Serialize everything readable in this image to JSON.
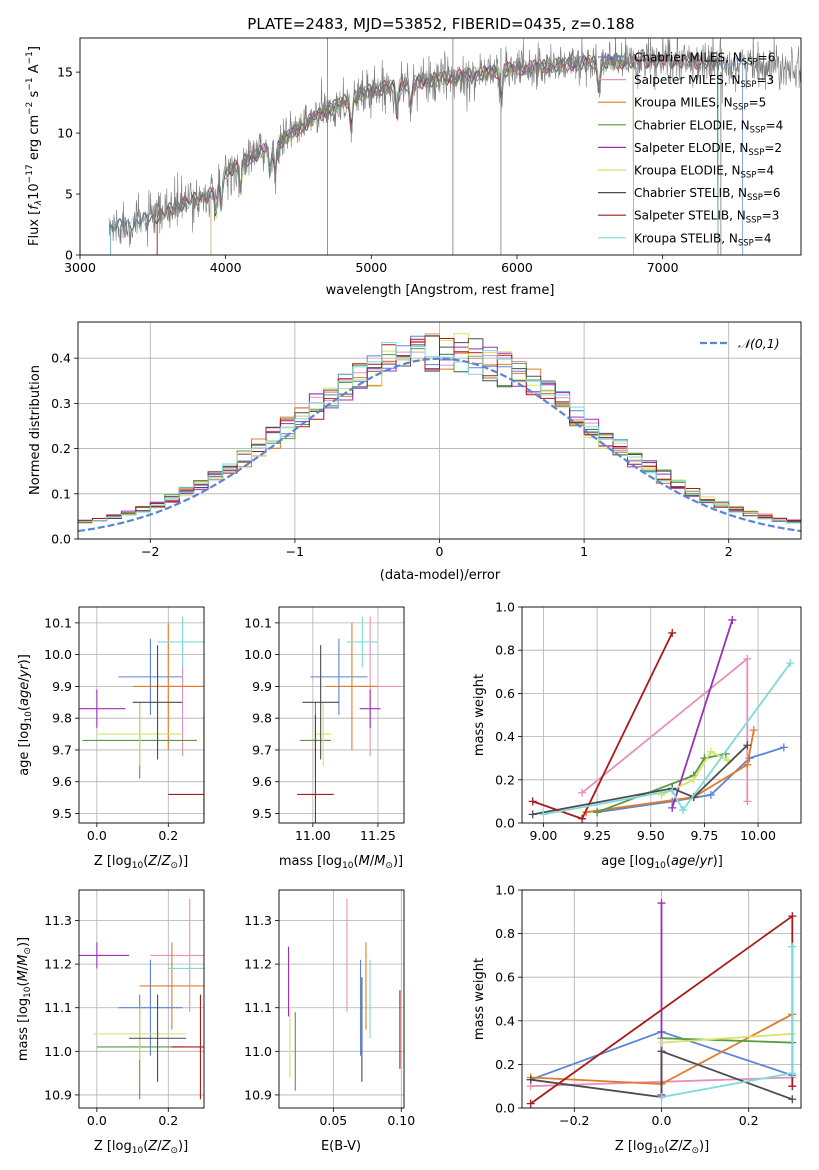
{
  "title": "PLATE=2483, MJD=53852, FIBERID=0435, z=0.188",
  "colors": {
    "Chabrier MILES": "#5b84d6",
    "Salpeter MILES": "#e88fbd",
    "Kroupa MILES": "#e07b2a",
    "Chabrier ELODIE": "#5a9a3e",
    "Salpeter ELODIE": "#9b30b8",
    "Kroupa ELODIE": "#d4e36a",
    "Chabrier STELIB": "#4d4d4d",
    "Salpeter STELIB": "#aa1a1a",
    "Kroupa STELIB": "#7fdada"
  },
  "chart_data": [
    {
      "type": "line",
      "xlabel": "wavelength [Angstrom, rest frame]",
      "ylabel": "Flux [f_λ 10^-17 erg cm^-2 s^-1 A^-1]",
      "xlim": [
        3000,
        7950
      ],
      "ylim": [
        0,
        17.8
      ],
      "xticks": [
        3000,
        4000,
        5000,
        6000,
        7000
      ],
      "yticks": [
        0,
        5,
        10,
        15
      ],
      "legend_position": "right",
      "series": [
        {
          "name": "Chabrier MILES",
          "nssp": "6",
          "xrange": [
            3210,
            7550
          ]
        },
        {
          "name": "Salpeter MILES",
          "nssp": "3",
          "xrange": [
            3530,
            7380
          ]
        },
        {
          "name": "Kroupa MILES",
          "nssp": "5",
          "xrange": [
            3530,
            7380
          ]
        },
        {
          "name": "Chabrier ELODIE",
          "nssp": "4",
          "xrange": [
            3900,
            6800
          ]
        },
        {
          "name": "Salpeter ELODIE",
          "nssp": "2",
          "xrange": [
            3900,
            6800
          ]
        },
        {
          "name": "Kroupa ELODIE",
          "nssp": "4",
          "xrange": [
            3900,
            6800
          ]
        },
        {
          "name": "Chabrier STELIB",
          "nssp": "6",
          "xrange": [
            3210,
            7380
          ]
        },
        {
          "name": "Salpeter STELIB",
          "nssp": "3",
          "xrange": [
            3530,
            7380
          ]
        },
        {
          "name": "Kroupa STELIB",
          "nssp": "4",
          "xrange": [
            3210,
            7380
          ]
        }
      ],
      "continuum": [
        [
          3200,
          2.2
        ],
        [
          3500,
          3.0
        ],
        [
          3700,
          4.2
        ],
        [
          3900,
          5.0
        ],
        [
          4000,
          6.8
        ],
        [
          4200,
          8.2
        ],
        [
          4400,
          9.5
        ],
        [
          4600,
          11.2
        ],
        [
          4800,
          12.5
        ],
        [
          5000,
          13.5
        ],
        [
          5200,
          14.0
        ],
        [
          5500,
          14.5
        ],
        [
          6000,
          15.3
        ],
        [
          6500,
          15.8
        ],
        [
          7000,
          15.9
        ],
        [
          7500,
          15.7
        ],
        [
          7950,
          15.6
        ]
      ],
      "absorption_lines": [
        3933,
        3968,
        4101,
        4304,
        4340,
        4861,
        5175,
        5270,
        5892,
        6563
      ],
      "spikes": [
        [
          4700,
          17.8
        ],
        [
          5560,
          17.8
        ],
        [
          5890,
          17.0
        ],
        [
          7400,
          15.0
        ]
      ]
    },
    {
      "type": "histogram",
      "xlabel": "(data-model)/error",
      "ylabel": "Normed distribution",
      "xlim": [
        -2.5,
        2.5
      ],
      "ylim": [
        0,
        0.48
      ],
      "xticks": [
        -2,
        -1,
        0,
        1,
        2
      ],
      "yticks": [
        0.0,
        0.1,
        0.2,
        0.3,
        0.4
      ],
      "bins": 50,
      "reference_label": "𝒩(0,1)",
      "reference_color": "#5b84d6"
    },
    {
      "type": "scatter",
      "xlabel": "Z [log10(Z/Z_sun)]",
      "ylabel": "age [log10(age/yr)]",
      "xlim": [
        -0.05,
        0.3
      ],
      "ylim": [
        9.47,
        10.15
      ],
      "xticks": [
        0.0,
        0.2
      ],
      "yticks": [
        9.5,
        9.6,
        9.7,
        9.8,
        9.9,
        10.0,
        10.1
      ],
      "points": [
        {
          "series": "Chabrier MILES",
          "x": 0.15,
          "xerr": 0.09,
          "y": 9.93,
          "yerr": 0.12
        },
        {
          "series": "Salpeter MILES",
          "x": 0.24,
          "xerr": 0.07,
          "y": 9.9,
          "yerr": 0.22
        },
        {
          "series": "Kroupa MILES",
          "x": 0.2,
          "xerr": 0.1,
          "y": 9.9,
          "yerr": 0.2
        },
        {
          "series": "Chabrier ELODIE",
          "x": 0.12,
          "xerr": 0.16,
          "y": 9.73,
          "yerr": 0.12
        },
        {
          "series": "Salpeter ELODIE",
          "x": 0.0,
          "xerr": 0.08,
          "y": 9.83,
          "yerr": 0.06
        },
        {
          "series": "Kroupa ELODIE",
          "x": 0.12,
          "xerr": 0.12,
          "y": 9.75,
          "yerr": 0.1
        },
        {
          "series": "Chabrier STELIB",
          "x": 0.17,
          "xerr": 0.07,
          "y": 9.85,
          "yerr": 0.18
        },
        {
          "series": "Salpeter STELIB",
          "x": 0.3,
          "xerr": 0.1,
          "y": 9.56,
          "yerr": 0.25
        },
        {
          "series": "Kroupa STELIB",
          "x": 0.24,
          "xerr": 0.07,
          "y": 10.04,
          "yerr": 0.08
        }
      ]
    },
    {
      "type": "scatter",
      "xlabel": "mass [log10(M/M_sun)]",
      "ylabel": "",
      "xlim": [
        10.87,
        11.35
      ],
      "ylim": [
        9.47,
        10.15
      ],
      "xticks": [
        11.0,
        11.25
      ],
      "yticks": [
        9.5,
        9.6,
        9.7,
        9.8,
        9.9,
        10.0,
        10.1
      ],
      "points": [
        {
          "series": "Chabrier MILES",
          "x": 11.1,
          "xerr": 0.11,
          "y": 9.93,
          "yerr": 0.12
        },
        {
          "series": "Salpeter MILES",
          "x": 11.22,
          "xerr": 0.12,
          "y": 9.9,
          "yerr": 0.22
        },
        {
          "series": "Kroupa MILES",
          "x": 11.15,
          "xerr": 0.1,
          "y": 9.9,
          "yerr": 0.2
        },
        {
          "series": "Chabrier ELODIE",
          "x": 11.01,
          "xerr": 0.06,
          "y": 9.73,
          "yerr": 0.12
        },
        {
          "series": "Salpeter ELODIE",
          "x": 11.22,
          "xerr": 0.04,
          "y": 9.83,
          "yerr": 0.06
        },
        {
          "series": "Kroupa ELODIE",
          "x": 11.04,
          "xerr": 0.03,
          "y": 9.75,
          "yerr": 0.1
        },
        {
          "series": "Chabrier STELIB",
          "x": 11.03,
          "xerr": 0.07,
          "y": 9.85,
          "yerr": 0.18
        },
        {
          "series": "Salpeter STELIB",
          "x": 11.01,
          "xerr": 0.07,
          "y": 9.56,
          "yerr": 0.25
        },
        {
          "series": "Kroupa STELIB",
          "x": 11.19,
          "xerr": 0.06,
          "y": 10.04,
          "yerr": 0.08
        }
      ]
    },
    {
      "type": "line",
      "xlabel": "age [log10(age/yr)]",
      "ylabel": "mass weight",
      "xlim": [
        8.9,
        10.2
      ],
      "ylim": [
        0,
        1.0
      ],
      "xticks": [
        9.0,
        9.25,
        9.5,
        9.75,
        10.0
      ],
      "yticks": [
        0.0,
        0.2,
        0.4,
        0.6,
        0.8,
        1.0
      ],
      "series": [
        {
          "name": "Chabrier MILES",
          "x": [
            9.25,
            9.6,
            9.78,
            9.96,
            10.12
          ],
          "y": [
            0.05,
            0.1,
            0.13,
            0.3,
            0.35
          ]
        },
        {
          "name": "Salpeter MILES",
          "x": [
            9.18,
            9.95,
            9.95
          ],
          "y": [
            0.14,
            0.76,
            0.1
          ]
        },
        {
          "name": "Kroupa MILES",
          "x": [
            9.2,
            9.7,
            9.95,
            9.98
          ],
          "y": [
            0.05,
            0.12,
            0.27,
            0.43
          ]
        },
        {
          "name": "Chabrier ELODIE",
          "x": [
            9.25,
            9.7,
            9.75,
            9.85
          ],
          "y": [
            0.05,
            0.22,
            0.3,
            0.32
          ]
        },
        {
          "name": "Salpeter ELODIE",
          "x": [
            9.6,
            9.88
          ],
          "y": [
            0.07,
            0.94
          ]
        },
        {
          "name": "Kroupa ELODIE",
          "x": [
            9.55,
            9.7,
            9.78,
            9.86
          ],
          "y": [
            0.13,
            0.2,
            0.33,
            0.29
          ]
        },
        {
          "name": "Chabrier STELIB",
          "x": [
            8.95,
            9.6,
            9.7,
            9.95
          ],
          "y": [
            0.04,
            0.16,
            0.12,
            0.36
          ]
        },
        {
          "name": "Salpeter STELIB",
          "x": [
            8.95,
            9.18,
            9.6
          ],
          "y": [
            0.1,
            0.02,
            0.88
          ]
        },
        {
          "name": "Kroupa STELIB",
          "x": [
            9.0,
            9.6,
            9.65,
            10.15
          ],
          "y": [
            0.04,
            0.15,
            0.06,
            0.74
          ]
        }
      ]
    },
    {
      "type": "scatter",
      "xlabel": "Z [log10(Z/Z_sun)]",
      "ylabel": "mass [log10(M/M_sun)]",
      "xlim": [
        -0.05,
        0.3
      ],
      "ylim": [
        10.87,
        11.37
      ],
      "xticks": [
        0.0,
        0.2
      ],
      "yticks": [
        10.9,
        11.0,
        11.1,
        11.2,
        11.3
      ],
      "points": [
        {
          "series": "Chabrier MILES",
          "x": 0.15,
          "xerr": 0.09,
          "y": 11.1,
          "yerr": 0.11
        },
        {
          "series": "Salpeter MILES",
          "x": 0.26,
          "xerr": 0.11,
          "y": 11.22,
          "yerr": 0.13
        },
        {
          "series": "Kroupa MILES",
          "x": 0.21,
          "xerr": 0.09,
          "y": 11.15,
          "yerr": 0.1
        },
        {
          "series": "Chabrier ELODIE",
          "x": 0.12,
          "xerr": 0.12,
          "y": 11.01,
          "yerr": 0.12
        },
        {
          "series": "Salpeter ELODIE",
          "x": 0.0,
          "xerr": 0.09,
          "y": 11.22,
          "yerr": 0.03
        },
        {
          "series": "Kroupa ELODIE",
          "x": 0.12,
          "xerr": 0.13,
          "y": 11.04,
          "yerr": 0.06
        },
        {
          "series": "Chabrier STELIB",
          "x": 0.17,
          "xerr": 0.08,
          "y": 11.03,
          "yerr": 0.1
        },
        {
          "series": "Salpeter STELIB",
          "x": 0.29,
          "xerr": 0.08,
          "y": 11.01,
          "yerr": 0.12
        },
        {
          "series": "Kroupa STELIB",
          "x": 0.26,
          "xerr": 0.06,
          "y": 11.19,
          "yerr": 0.03
        }
      ]
    },
    {
      "type": "scatter",
      "xlabel": "E(B-V)",
      "ylabel": "",
      "xlim": [
        0.01,
        0.102
      ],
      "ylim": [
        10.87,
        11.37
      ],
      "xticks": [
        0.05,
        0.1
      ],
      "yticks": [
        10.9,
        11.0,
        11.1,
        11.2,
        11.3
      ],
      "points": [
        {
          "series": "Chabrier MILES",
          "x": 0.07,
          "y": 11.1,
          "yerr": 0.11
        },
        {
          "series": "Salpeter MILES",
          "x": 0.06,
          "y": 11.22,
          "yerr": 0.13
        },
        {
          "series": "Kroupa MILES",
          "x": 0.074,
          "y": 11.15,
          "yerr": 0.1
        },
        {
          "series": "Chabrier ELODIE",
          "x": 0.022,
          "y": 11.0,
          "yerr": 0.09
        },
        {
          "series": "Salpeter ELODIE",
          "x": 0.017,
          "y": 11.16,
          "yerr": 0.08
        },
        {
          "series": "Kroupa ELODIE",
          "x": 0.018,
          "y": 11.02,
          "yerr": 0.08
        },
        {
          "series": "Chabrier STELIB",
          "x": 0.071,
          "y": 11.05,
          "yerr": 0.12
        },
        {
          "series": "Salpeter STELIB",
          "x": 0.099,
          "y": 11.05,
          "yerr": 0.09
        },
        {
          "series": "Kroupa STELIB",
          "x": 0.077,
          "y": 11.12,
          "yerr": 0.09
        }
      ]
    },
    {
      "type": "line",
      "xlabel": "Z [log10(Z/Z_sun)]",
      "ylabel": "mass weight",
      "xlim": [
        -0.32,
        0.32
      ],
      "ylim": [
        0,
        1.0
      ],
      "xticks": [
        -0.2,
        0.0,
        0.2
      ],
      "yticks": [
        0.0,
        0.2,
        0.4,
        0.6,
        0.8,
        1.0
      ],
      "series": [
        {
          "name": "Chabrier MILES",
          "x": [
            -0.3,
            0.0,
            0.3
          ],
          "y": [
            0.13,
            0.35,
            0.15
          ]
        },
        {
          "name": "Salpeter MILES",
          "x": [
            -0.3,
            0.0,
            0.3
          ],
          "y": [
            0.1,
            0.12,
            0.14
          ]
        },
        {
          "name": "Kroupa MILES",
          "x": [
            -0.3,
            0.0,
            0.3
          ],
          "y": [
            0.14,
            0.11,
            0.43
          ]
        },
        {
          "name": "Chabrier ELODIE",
          "x": [
            0.0,
            0.3
          ],
          "y": [
            0.32,
            0.3
          ]
        },
        {
          "name": "Salpeter ELODIE",
          "x": [
            0.0,
            0.0
          ],
          "y": [
            0.94,
            0.06
          ]
        },
        {
          "name": "Kroupa ELODIE",
          "x": [
            0.0,
            0.3
          ],
          "y": [
            0.3,
            0.34
          ]
        },
        {
          "name": "Chabrier STELIB",
          "x": [
            -0.3,
            0.0,
            0.0,
            0.3
          ],
          "y": [
            0.13,
            0.05,
            0.26,
            0.04
          ]
        },
        {
          "name": "Salpeter STELIB",
          "x": [
            -0.3,
            0.3,
            0.3
          ],
          "y": [
            0.02,
            0.88,
            0.1
          ]
        },
        {
          "name": "Kroupa STELIB",
          "x": [
            0.0,
            0.3,
            0.3
          ],
          "y": [
            0.05,
            0.16,
            0.74
          ]
        }
      ]
    }
  ]
}
